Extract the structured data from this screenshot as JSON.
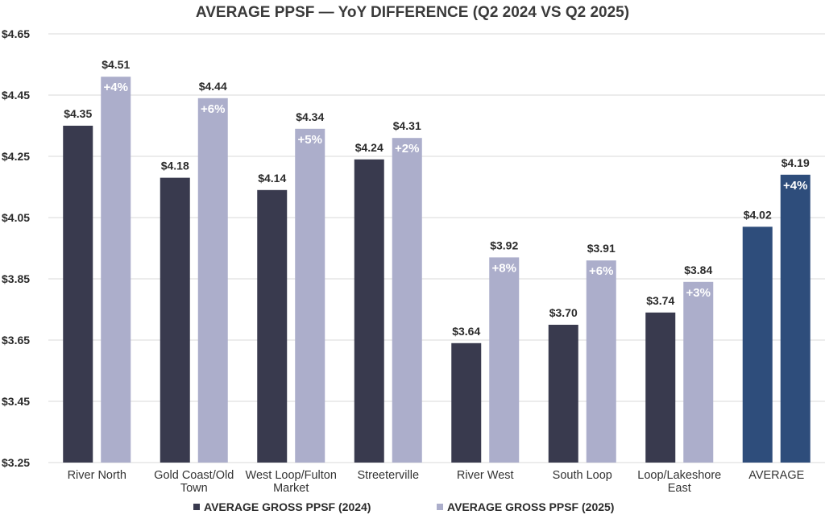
{
  "chart_data": {
    "type": "bar",
    "title": "AVERAGE PPSF — YoY DIFFERENCE (Q2 2024 VS Q2 2025)",
    "categories": [
      "River North",
      "Gold Coast/Old Town",
      "West Loop/Fulton Market",
      "Streeterville",
      "River West",
      "South Loop",
      "Loop/Lakeshore East",
      "AVERAGE"
    ],
    "category_lines": [
      [
        "River North"
      ],
      [
        "Gold Coast/Old",
        "Town"
      ],
      [
        "West Loop/Fulton",
        "Market"
      ],
      [
        "Streeterville"
      ],
      [
        "River West"
      ],
      [
        "South Loop"
      ],
      [
        "Loop/Lakeshore",
        "East"
      ],
      [
        "AVERAGE"
      ]
    ],
    "series": [
      {
        "name": "AVERAGE GROSS PPSF (2024)",
        "values": [
          4.35,
          4.18,
          4.14,
          4.24,
          3.64,
          3.7,
          3.74,
          4.02
        ],
        "labels": [
          "$4.35",
          "$4.18",
          "$4.14",
          "$4.24",
          "$3.64",
          "$3.70",
          "$3.74",
          "$4.02"
        ],
        "color": "#393a4e",
        "highlight_color": "#2e4d7b"
      },
      {
        "name": "AVERAGE GROSS PPSF (2025)",
        "values": [
          4.51,
          4.44,
          4.34,
          4.31,
          3.92,
          3.91,
          3.84,
          4.19
        ],
        "labels": [
          "$4.51",
          "$4.44",
          "$4.34",
          "$4.31",
          "$3.92",
          "$3.91",
          "$3.84",
          "$4.19"
        ],
        "color": "#acaecb",
        "highlight_color": "#2e4d7b"
      }
    ],
    "yoy_change_labels": [
      "+4%",
      "+6%",
      "+5%",
      "+2%",
      "+8%",
      "+6%",
      "+3%",
      "+4%"
    ],
    "highlight_category": "AVERAGE",
    "ylim": [
      3.25,
      4.65
    ],
    "yticks": [
      3.25,
      3.45,
      3.65,
      3.85,
      4.05,
      4.25,
      4.45,
      4.65
    ],
    "ytick_labels": [
      "$3.25",
      "$3.45",
      "$3.65",
      "$3.85",
      "$4.05",
      "$4.25",
      "$4.45",
      "$4.65"
    ],
    "xlabel": "",
    "ylabel": "",
    "grid": true,
    "legend_position": "bottom"
  }
}
